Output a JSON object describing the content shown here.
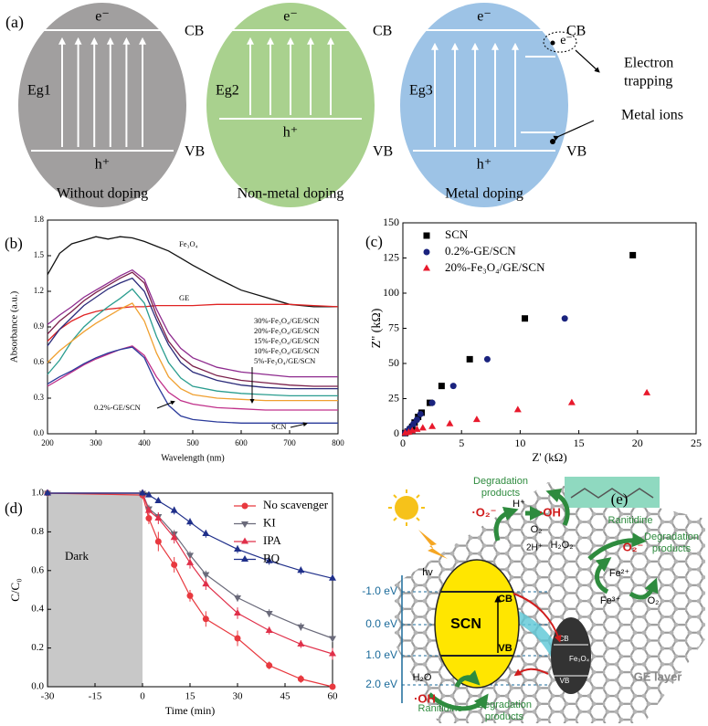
{
  "panel_a": {
    "label": "(a)",
    "cells": [
      {
        "e": "e⁻",
        "h": "h⁺",
        "gap": "Eg1",
        "cb": "CB",
        "vb": "VB",
        "caption": "Without doping"
      },
      {
        "e": "e⁻",
        "h": "h⁺",
        "gap": "Eg2",
        "cb": "CB",
        "vb": "VB",
        "caption": "Non-metal doping"
      },
      {
        "e": "e⁻",
        "h": "h⁺",
        "gap": "Eg3",
        "cb": "CB",
        "vb": "VB",
        "caption": "Metal doping",
        "trapped": "e⁻"
      }
    ],
    "electron_trapping": [
      "Electron",
      "trapping"
    ],
    "metal_ions": "Metal ions"
  },
  "chart_data": [
    {
      "type": "line",
      "panel_label": "(b)",
      "xlabel": "Wavelength (nm)",
      "ylabel": "Absorbance (a.u.)",
      "x": [
        200,
        225,
        250,
        275,
        300,
        325,
        350,
        375,
        400,
        425,
        450,
        475,
        500,
        550,
        600,
        650,
        700,
        750,
        800
      ],
      "xlim": [
        200,
        800
      ],
      "xticks": [
        200,
        300,
        400,
        500,
        600,
        700,
        800
      ],
      "ylim": [
        0,
        1.8
      ],
      "yticks": [
        {
          "value": 0,
          "label": "0.0"
        },
        0.3,
        0.6,
        0.9,
        1.2,
        1.5,
        1.8
      ],
      "series": [
        {
          "name": "Fe₃O₄",
          "color": "#111111",
          "values": [
            1.34,
            1.52,
            1.6,
            1.63,
            1.66,
            1.64,
            1.66,
            1.65,
            1.62,
            1.58,
            1.54,
            1.48,
            1.42,
            1.31,
            1.21,
            1.15,
            1.09,
            1.07,
            1.07
          ]
        },
        {
          "name": "GE",
          "color": "#e02424",
          "values": [
            0.78,
            0.88,
            0.95,
            1.0,
            1.03,
            1.05,
            1.06,
            1.07,
            1.07,
            1.08,
            1.08,
            1.08,
            1.08,
            1.09,
            1.09,
            1.09,
            1.09,
            1.08,
            1.07
          ]
        },
        {
          "name": "30%-Fe₃O₄/GE/SCN",
          "color": "#8e2a8e",
          "values": [
            0.92,
            1.0,
            1.07,
            1.15,
            1.21,
            1.27,
            1.33,
            1.38,
            1.3,
            1.05,
            0.85,
            0.72,
            0.64,
            0.56,
            0.52,
            0.5,
            0.48,
            0.48,
            0.48
          ]
        },
        {
          "name": "20%-Fe₃O₄/GE/SCN",
          "color": "#7a1f4a",
          "values": [
            0.84,
            0.95,
            1.03,
            1.12,
            1.19,
            1.25,
            1.31,
            1.36,
            1.27,
            1.0,
            0.78,
            0.65,
            0.57,
            0.49,
            0.45,
            0.43,
            0.41,
            0.4,
            0.4
          ]
        },
        {
          "name": "15%-Fe₃O₄/GE/SCN",
          "color": "#2a9d8f",
          "values": [
            0.5,
            0.62,
            0.78,
            0.9,
            0.99,
            1.07,
            1.14,
            1.22,
            1.1,
            0.82,
            0.6,
            0.47,
            0.4,
            0.36,
            0.34,
            0.33,
            0.32,
            0.32,
            0.32
          ]
        },
        {
          "name": "10%-Fe₃O₄/GE/SCN",
          "color": "#f0a030",
          "values": [
            0.6,
            0.7,
            0.78,
            0.86,
            0.93,
            0.99,
            1.05,
            1.1,
            0.95,
            0.68,
            0.48,
            0.38,
            0.33,
            0.3,
            0.29,
            0.28,
            0.28,
            0.28,
            0.28
          ]
        },
        {
          "name": "5%-Fe₃O₄/GE/SCN",
          "color": "#2b2b7a",
          "values": [
            0.74,
            0.88,
            0.98,
            1.08,
            1.15,
            1.22,
            1.27,
            1.31,
            1.2,
            0.96,
            0.75,
            0.6,
            0.52,
            0.45,
            0.41,
            0.39,
            0.38,
            0.38,
            0.38
          ]
        },
        {
          "name": "0.2%-GE/SCN",
          "color": "#c0308a",
          "values": [
            0.4,
            0.46,
            0.52,
            0.58,
            0.63,
            0.67,
            0.71,
            0.74,
            0.66,
            0.48,
            0.35,
            0.28,
            0.25,
            0.22,
            0.21,
            0.2,
            0.2,
            0.2,
            0.2
          ]
        },
        {
          "name": "SCN",
          "color": "#2a3a9a",
          "values": [
            0.42,
            0.48,
            0.53,
            0.59,
            0.64,
            0.68,
            0.71,
            0.73,
            0.64,
            0.42,
            0.24,
            0.15,
            0.12,
            0.1,
            0.09,
            0.09,
            0.09,
            0.09,
            0.09
          ]
        }
      ]
    },
    {
      "type": "scatter",
      "panel_label": "(c)",
      "xlabel": "Z' (kΩ)",
      "ylabel": "Z'' (kΩ)",
      "xlim": [
        0,
        25
      ],
      "xticks": [
        0,
        5,
        10,
        15,
        20,
        25
      ],
      "ylim": [
        0,
        150
      ],
      "yticks": [
        0,
        25,
        50,
        75,
        100,
        125,
        150
      ],
      "legend": "upper left",
      "series": [
        {
          "name": "SCN",
          "color": "#000000",
          "marker": "square",
          "x": [
            0.2,
            0.4,
            0.6,
            0.8,
            1.0,
            1.3,
            1.6,
            2.3,
            3.3,
            5.7,
            10.4,
            19.6
          ],
          "values": [
            0.5,
            1.5,
            3,
            5,
            8,
            12,
            15,
            22,
            34,
            53,
            82,
            127
          ]
        },
        {
          "name": "0.2%-GE/SCN",
          "color": "#1a237e",
          "marker": "circle",
          "x": [
            0.2,
            0.4,
            0.6,
            0.9,
            1.2,
            1.5,
            2.5,
            4.3,
            7.2,
            13.8
          ],
          "values": [
            0.5,
            2,
            4,
            7,
            10,
            14,
            22,
            34,
            53,
            82
          ]
        },
        {
          "name": "20%-Fe₃O₄/GE/SCN",
          "color": "#e8192c",
          "marker": "triangle-up",
          "x": [
            0.2,
            0.5,
            0.8,
            1.2,
            1.7,
            2.5,
            4.0,
            6.3,
            9.8,
            14.4,
            20.8
          ],
          "values": [
            0.5,
            1,
            2,
            3,
            4,
            5,
            7,
            10,
            17,
            22,
            29
          ]
        }
      ]
    },
    {
      "type": "line",
      "panel_label": "(d)",
      "xlabel": "Time (min)",
      "ylabel": "C/C₀",
      "annotation": "Dark",
      "shaded_region": [
        -30,
        0
      ],
      "x": [
        -30,
        0,
        2,
        5,
        10,
        15,
        20,
        30,
        40,
        50,
        60
      ],
      "xlim": [
        -30,
        60
      ],
      "xticks": [
        -30,
        -15,
        0,
        15,
        30,
        45,
        60
      ],
      "ylim": [
        0,
        1.0
      ],
      "yticks": [
        {
          "value": 0,
          "label": "0.0"
        },
        0.2,
        0.4,
        0.6,
        0.8,
        {
          "value": 1,
          "label": "1.0"
        }
      ],
      "legend": "upper right",
      "series": [
        {
          "name": "No scavenger",
          "color": "#e8393f",
          "marker": "circle",
          "values": [
            1.0,
            0.99,
            0.87,
            0.75,
            0.63,
            0.47,
            0.35,
            0.25,
            0.11,
            0.04,
            0.0
          ],
          "errors": [
            0.01,
            0.02,
            0.03,
            0.05,
            0.04,
            0.03,
            0.04,
            0.04,
            0.02,
            0.02,
            0.01
          ]
        },
        {
          "name": "KI",
          "color": "#6a6a7a",
          "marker": "triangle-down",
          "values": [
            1.0,
            1.0,
            0.92,
            0.88,
            0.79,
            0.68,
            0.58,
            0.46,
            0.38,
            0.31,
            0.25
          ],
          "errors": [
            0.01,
            0.01,
            0.02,
            0.02,
            0.02,
            0.02,
            0.02,
            0.02,
            0.02,
            0.02,
            0.01
          ]
        },
        {
          "name": "IPA",
          "color": "#e0304a",
          "marker": "triangle-up",
          "values": [
            1.0,
            1.0,
            0.91,
            0.87,
            0.77,
            0.64,
            0.53,
            0.38,
            0.29,
            0.22,
            0.17
          ],
          "errors": [
            0.01,
            0.01,
            0.02,
            0.03,
            0.03,
            0.03,
            0.03,
            0.03,
            0.02,
            0.02,
            0.03
          ]
        },
        {
          "name": "BQ",
          "color": "#1f2f8a",
          "marker": "triangle-up",
          "values": [
            1.0,
            1.0,
            0.99,
            0.96,
            0.91,
            0.85,
            0.79,
            0.71,
            0.65,
            0.6,
            0.56
          ],
          "errors": [
            0.01,
            0.01,
            0.01,
            0.01,
            0.02,
            0.02,
            0.02,
            0.02,
            0.02,
            0.02,
            0.01
          ]
        }
      ]
    }
  ],
  "panel_e": {
    "label": "(e)",
    "energy_levels": [
      "-1.0 eV",
      "0.0 eV",
      "1.0 eV",
      "2.0 eV"
    ],
    "scn": "SCN",
    "scn_cb": "CB",
    "scn_vb": "VB",
    "fe3o4": "Fe₃O₄",
    "fe_cb": "CB",
    "fe_vb": "VB",
    "hv": "hv",
    "superoxide": "·O₂⁻",
    "h_plus": "H⁺",
    "hydroxyl_top": "·OH",
    "o2_top": "O₂",
    "two_h": "2H⁺",
    "h2o2": "H₂O₂",
    "fe2": "Fe²⁺",
    "fe3": "Fe³⁺",
    "o2_right": "O₂",
    "o2_minus": "O₂⁻",
    "h2o": "H₂O",
    "hydroxyl_bottom": "·OH",
    "ranitidine_top": "Ranitidine",
    "ranitidine_bottom": "Ranitidine",
    "products_top": [
      "Degradation",
      "products"
    ],
    "products_right": [
      "Degradation",
      "products"
    ],
    "products_bottom": [
      "Degradation",
      "products"
    ],
    "ge_layer": "GE layer"
  }
}
